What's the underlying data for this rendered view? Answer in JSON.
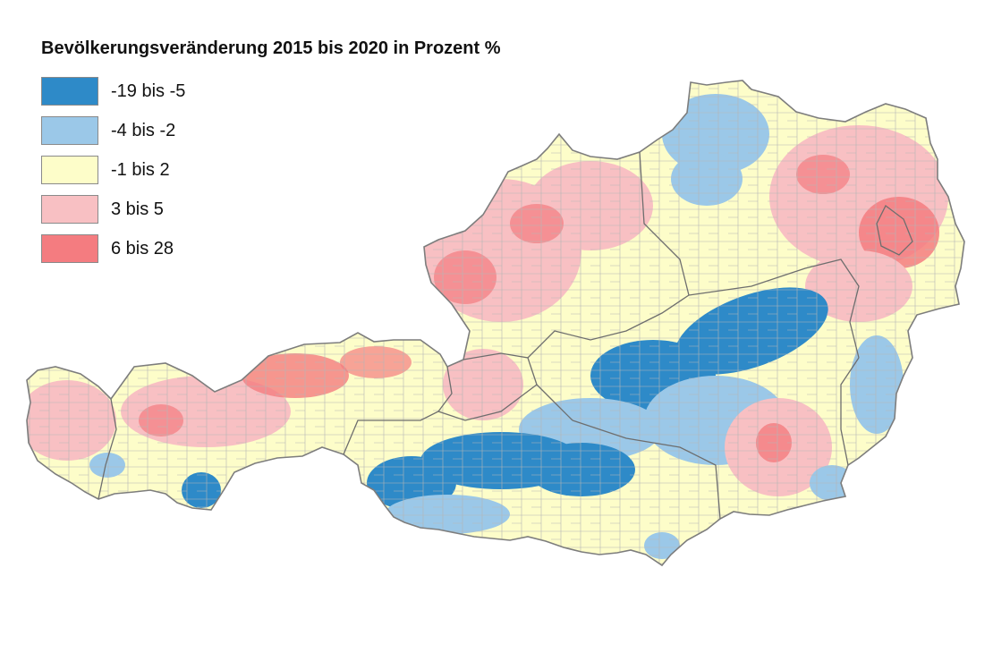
{
  "title": "Bevölkerungsveränderung 2015 bis 2020 in Prozent %",
  "legend": [
    {
      "label": "-19 bis -5",
      "color": "#2e8ac8"
    },
    {
      "label": "-4 bis -2",
      "color": "#9bc8e8"
    },
    {
      "label": "-1 bis 2",
      "color": "#fdfdc9"
    },
    {
      "label": "3 bis 5",
      "color": "#f8c0c3"
    },
    {
      "label": "6 bis 28",
      "color": "#f47c80"
    }
  ],
  "map": {
    "region": "Austria",
    "boundary_color": "#7d7d7d"
  }
}
